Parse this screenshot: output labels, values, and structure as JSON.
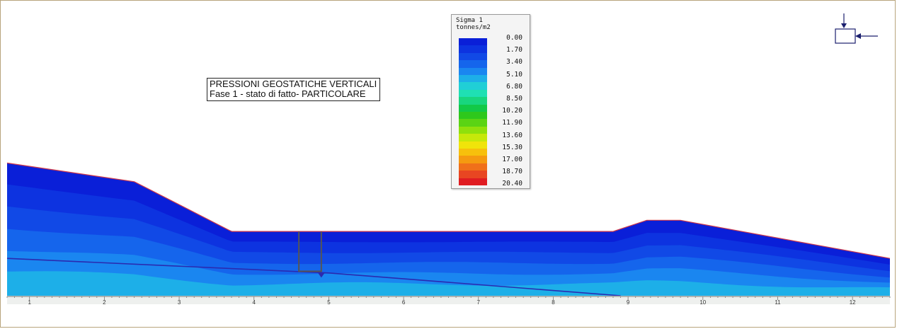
{
  "title": {
    "line1": "PRESSIONI GEOSTATICHE VERTICALI",
    "line2": "Fase 1 - stato di fatto- PARTICOLARE"
  },
  "legend": {
    "title_line1": "Sigma 1",
    "title_line2": "tonnes/m2"
  },
  "chart_data": {
    "type": "heatmap",
    "variable": "Sigma 1",
    "unit": "tonnes/m2",
    "scale_values": [
      "0.00",
      "1.70",
      "3.40",
      "5.10",
      "6.80",
      "8.50",
      "10.20",
      "11.90",
      "13.60",
      "15.30",
      "17.00",
      "18.70",
      "20.40"
    ],
    "scale_colors": [
      "#0a1fd8",
      "#0d33e0",
      "#1149e6",
      "#1565ec",
      "#1a86f0",
      "#1dafe8",
      "#20cfd6",
      "#1fe0b3",
      "#18d67e",
      "#12c947",
      "#2ec81c",
      "#5ad414",
      "#8fe00c",
      "#c6e80a",
      "#f0e40a",
      "#f7c00c",
      "#f59a10",
      "#f0701a",
      "#e84622",
      "#e01c22"
    ],
    "x_ticks": [
      "1",
      "2",
      "3",
      "4",
      "5",
      "6",
      "7",
      "8",
      "9",
      "10",
      "11",
      "12"
    ],
    "x_range": [
      0.7,
      12.5
    ],
    "ground_profile": [
      [
        0.7,
        3.0
      ],
      [
        2.4,
        2.55
      ],
      [
        3.7,
        1.35
      ],
      [
        8.8,
        1.35
      ],
      [
        9.25,
        1.62
      ],
      [
        9.7,
        1.62
      ],
      [
        12.5,
        0.7
      ]
    ],
    "water_table": [
      [
        0.7,
        0.7
      ],
      [
        5.0,
        0.35
      ],
      [
        8.9,
        -0.2
      ]
    ],
    "y_range": [
      -0.2,
      4.2
    ],
    "colored_layers": [
      "#0a1fd8",
      "#0d33e0",
      "#1149e6",
      "#1565ec",
      "#1a86f0",
      "#1dafe8"
    ]
  }
}
